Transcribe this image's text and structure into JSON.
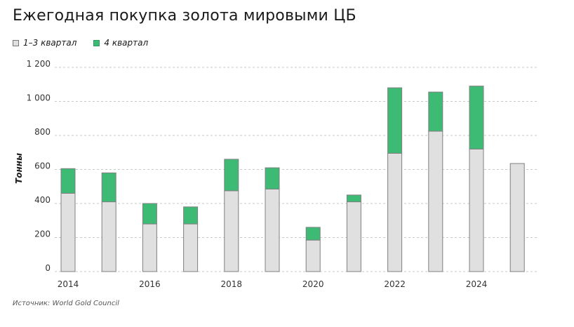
{
  "title": "Ежегодная покупка золота мировыми ЦБ",
  "source": "Источник: World Gold Council",
  "colors": {
    "base": "#e0e0e0",
    "q4": "#3dba73",
    "grid": "#c8c8c8",
    "border": "#808080"
  },
  "chart_data": {
    "type": "bar",
    "stacked": true,
    "title": "Ежегодная покупка золота мировыми ЦБ",
    "ylabel": "Тонны",
    "xlabel": "",
    "ylim": [
      0,
      1200
    ],
    "yticks": [
      0,
      200,
      400,
      600,
      800,
      1000,
      1200
    ],
    "ytick_labels": [
      "0",
      "200",
      "400",
      "600",
      "800",
      "1 000",
      "1 200"
    ],
    "categories": [
      "2014",
      "2015",
      "2016",
      "2017",
      "2018",
      "2019",
      "2020",
      "2021",
      "2022",
      "2023",
      "2024",
      "2025"
    ],
    "xtick_labels": [
      "2014",
      "",
      "2016",
      "",
      "2018",
      "",
      "2020",
      "",
      "2022",
      "",
      "2024",
      ""
    ],
    "grid": true,
    "legend_position": "top-left",
    "series": [
      {
        "name": "1–3 квартал",
        "color": "#e0e0e0",
        "values": [
          460,
          410,
          280,
          280,
          475,
          485,
          185,
          410,
          695,
          825,
          720,
          635
        ]
      },
      {
        "name": "4 квартал",
        "color": "#3dba73",
        "values": [
          145,
          170,
          120,
          100,
          185,
          125,
          75,
          40,
          385,
          230,
          370,
          0
        ]
      }
    ]
  }
}
